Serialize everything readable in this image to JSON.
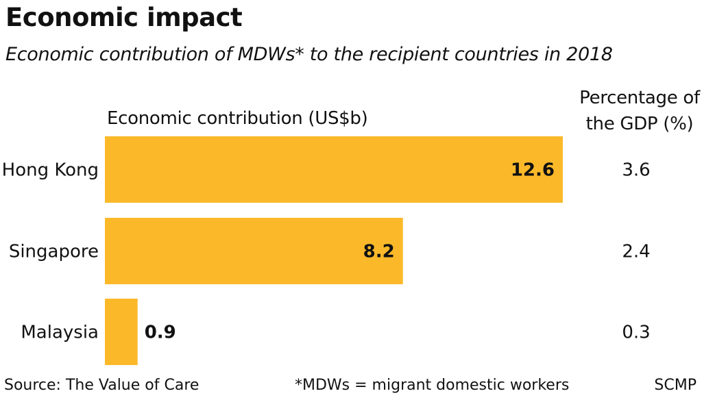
{
  "title": "Economic impact",
  "subtitle": "Economic contribution of MDWs* to the recipient countries in 2018",
  "footer": {
    "source": "Source: The Value of Care",
    "note": "*MDWs = migrant domestic workers",
    "credit": "SCMP"
  },
  "chart_data": {
    "type": "bar",
    "orientation": "horizontal",
    "categories": [
      "Hong Kong",
      "Singapore",
      "Malaysia"
    ],
    "values": [
      12.6,
      8.2,
      0.9
    ],
    "value_labels": [
      "12.6",
      "8.2",
      "0.9"
    ],
    "value_axis_label": "Economic contribution (US$b)",
    "percent_header": [
      "Percentage of",
      "the GDP (%)"
    ],
    "percent_of_gdp": [
      "3.6",
      "2.4",
      "0.3"
    ],
    "xlim": [
      0,
      12.6
    ],
    "grid": false,
    "bar_color": "#FBB92A"
  }
}
